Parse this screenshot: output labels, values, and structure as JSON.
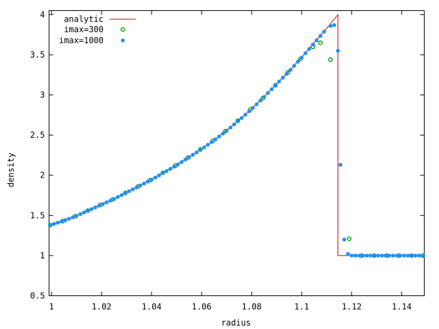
{
  "chart_data": {
    "type": "line",
    "xlabel": "radius",
    "ylabel": "density",
    "xlim": [
      0.999,
      1.149
    ],
    "ylim": [
      0.5,
      4.05
    ],
    "legend_position": "top-left",
    "grid": false,
    "x_ticks": [
      {
        "value": 1.0,
        "label": "1"
      },
      {
        "value": 1.02,
        "label": "1.02"
      },
      {
        "value": 1.04,
        "label": "1.04"
      },
      {
        "value": 1.06,
        "label": "1.06"
      },
      {
        "value": 1.08,
        "label": "1.08"
      },
      {
        "value": 1.1,
        "label": "1.1"
      },
      {
        "value": 1.12,
        "label": "1.12"
      },
      {
        "value": 1.14,
        "label": "1.14"
      }
    ],
    "y_ticks": [
      {
        "value": 0.5,
        "label": "0.5"
      },
      {
        "value": 1.0,
        "label": "1"
      },
      {
        "value": 1.5,
        "label": "1.5"
      },
      {
        "value": 2.0,
        "label": "2"
      },
      {
        "value": 2.5,
        "label": "2.5"
      },
      {
        "value": 3.0,
        "label": "3"
      },
      {
        "value": 3.5,
        "label": "3.5"
      },
      {
        "value": 4.0,
        "label": "4"
      }
    ],
    "series": [
      {
        "name": "analytic",
        "style": "line",
        "color": "#cc0000",
        "x": [
          0.999,
          1.005,
          1.01,
          1.015,
          1.02,
          1.025,
          1.03,
          1.035,
          1.04,
          1.045,
          1.05,
          1.055,
          1.06,
          1.065,
          1.07,
          1.075,
          1.08,
          1.085,
          1.09,
          1.095,
          1.1,
          1.105,
          1.11,
          1.1145,
          1.1145,
          1.149
        ],
        "y": [
          1.38,
          1.44,
          1.5,
          1.57,
          1.64,
          1.71,
          1.79,
          1.87,
          1.95,
          2.04,
          2.13,
          2.23,
          2.33,
          2.44,
          2.56,
          2.69,
          2.83,
          2.98,
          3.14,
          3.3,
          3.47,
          3.65,
          3.83,
          4.0,
          1.0,
          1.0
        ]
      },
      {
        "name": "imax=300",
        "style": "open-circle",
        "color": "#00a000",
        "x": [
          0.9995,
          1.0045,
          1.0095,
          1.0145,
          1.0195,
          1.0245,
          1.0295,
          1.0345,
          1.0395,
          1.0445,
          1.0495,
          1.0545,
          1.0595,
          1.0645,
          1.0695,
          1.0745,
          1.0795,
          1.0845,
          1.0895,
          1.0945,
          1.0995,
          1.1045,
          1.1075,
          1.1115,
          1.119,
          1.124,
          1.129,
          1.134,
          1.139,
          1.144,
          1.1485
        ],
        "y": [
          1.38,
          1.43,
          1.49,
          1.56,
          1.63,
          1.7,
          1.78,
          1.86,
          1.94,
          2.03,
          2.12,
          2.22,
          2.32,
          2.43,
          2.55,
          2.68,
          2.82,
          2.96,
          3.12,
          3.28,
          3.45,
          3.6,
          3.65,
          3.44,
          1.21,
          1.0,
          1.0,
          1.0,
          1.0,
          1.0,
          1.0
        ]
      },
      {
        "name": "imax=1000",
        "style": "filled-dot",
        "color": "#1e90ff",
        "x_range": [
          0.9995,
          1.149
        ],
        "step": 0.0015,
        "shock_x": 1.1145,
        "pre_shock_y0": 1.38,
        "post_shock_y": 1.0,
        "transition": [
          {
            "x": 1.1115,
            "y": 3.86
          },
          {
            "x": 1.113,
            "y": 3.87
          },
          {
            "x": 1.1145,
            "y": 3.55
          },
          {
            "x": 1.1155,
            "y": 2.13
          },
          {
            "x": 1.117,
            "y": 1.2
          },
          {
            "x": 1.1185,
            "y": 1.02
          }
        ]
      }
    ]
  }
}
